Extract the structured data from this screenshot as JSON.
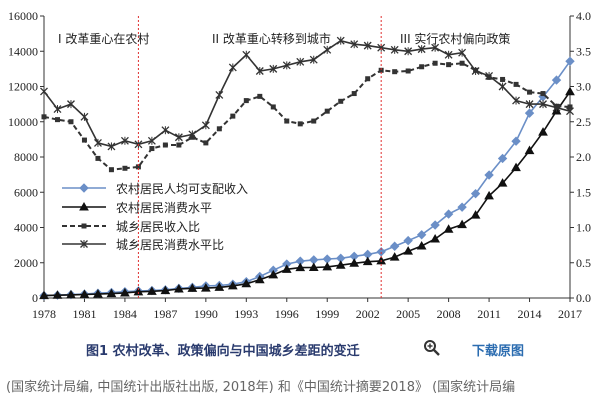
{
  "chart_data": {
    "type": "line",
    "title": "",
    "xlabel": "",
    "ylabel": "",
    "x_ticks": [
      1978,
      1981,
      1984,
      1987,
      1990,
      1993,
      1996,
      1999,
      2002,
      2005,
      2008,
      2011,
      2014,
      2017
    ],
    "x_range": [
      1978,
      2017
    ],
    "y_left": {
      "range": [
        0,
        16000
      ],
      "ticks": [
        0,
        2000,
        4000,
        6000,
        8000,
        10000,
        12000,
        14000,
        16000
      ]
    },
    "y_right": {
      "range": [
        0,
        4
      ],
      "ticks": [
        "0.0",
        "0.5",
        "1.0",
        "1.5",
        "2.0",
        "2.5",
        "3.0",
        "3.5",
        "4.0"
      ]
    },
    "legend_position": "left-middle",
    "grid": false,
    "annotations": [
      "I 改革重心在农村",
      "II 改革重心转移到城市",
      "III 实行农村偏向政策"
    ],
    "vlines": [
      1985,
      2003
    ],
    "series": [
      {
        "name": "农村居民人均可支配收入",
        "axis": "left",
        "color": "#6b8fc7",
        "marker": "diamond",
        "style": "solid",
        "x": [
          1978,
          1979,
          1980,
          1981,
          1982,
          1983,
          1984,
          1985,
          1986,
          1987,
          1988,
          1989,
          1990,
          1991,
          1992,
          1993,
          1994,
          1995,
          1996,
          1997,
          1998,
          1999,
          2000,
          2001,
          2002,
          2003,
          2004,
          2005,
          2006,
          2007,
          2008,
          2009,
          2010,
          2011,
          2012,
          2013,
          2014,
          2015,
          2016,
          2017
        ],
        "values": [
          134,
          160,
          191,
          223,
          270,
          310,
          355,
          398,
          424,
          463,
          545,
          602,
          686,
          709,
          784,
          922,
          1221,
          1578,
          1926,
          2090,
          2162,
          2210,
          2253,
          2366,
          2476,
          2622,
          2936,
          3255,
          3587,
          4140,
          4761,
          5153,
          5919,
          6977,
          7917,
          8896,
          10489,
          11422,
          12363,
          13432
        ]
      },
      {
        "name": "农村居民消费水平",
        "axis": "left",
        "color": "#111111",
        "marker": "triangle",
        "style": "solid",
        "x": [
          1978,
          1979,
          1980,
          1981,
          1982,
          1983,
          1984,
          1985,
          1986,
          1987,
          1988,
          1989,
          1990,
          1991,
          1992,
          1993,
          1994,
          1995,
          1996,
          1997,
          1998,
          1999,
          2000,
          2001,
          2002,
          2003,
          2004,
          2005,
          2006,
          2007,
          2008,
          2009,
          2010,
          2011,
          2012,
          2013,
          2014,
          2015,
          2016,
          2017
        ],
        "values": [
          138,
          159,
          178,
          201,
          223,
          250,
          287,
          349,
          378,
          421,
          509,
          549,
          560,
          602,
          688,
          805,
          1038,
          1313,
          1626,
          1722,
          1730,
          1766,
          1860,
          1969,
          2062,
          2103,
          2319,
          2657,
          2950,
          3347,
          3901,
          4163,
          4700,
          5796,
          6516,
          7397,
          8365,
          9409,
          10610,
          11704
        ]
      },
      {
        "name": "城乡居民收入比",
        "axis": "right",
        "color": "#333333",
        "marker": "square",
        "style": "dashed",
        "x": [
          1978,
          1979,
          1980,
          1981,
          1982,
          1983,
          1984,
          1985,
          1986,
          1987,
          1988,
          1989,
          1990,
          1991,
          1992,
          1993,
          1994,
          1995,
          1996,
          1997,
          1998,
          1999,
          2000,
          2001,
          2002,
          2003,
          2004,
          2005,
          2006,
          2007,
          2008,
          2009,
          2010,
          2011,
          2012,
          2013,
          2014,
          2015,
          2016,
          2017
        ],
        "values": [
          2.57,
          2.53,
          2.5,
          2.24,
          1.98,
          1.82,
          1.84,
          1.86,
          2.12,
          2.17,
          2.17,
          2.28,
          2.2,
          2.4,
          2.58,
          2.8,
          2.86,
          2.71,
          2.51,
          2.47,
          2.51,
          2.65,
          2.79,
          2.9,
          3.11,
          3.23,
          3.21,
          3.22,
          3.28,
          3.33,
          3.31,
          3.33,
          3.23,
          3.13,
          3.1,
          3.03,
          2.92,
          2.9,
          2.72,
          2.71
        ]
      },
      {
        "name": "城乡居民消费水平比",
        "axis": "right",
        "color": "#333333",
        "marker": "x",
        "style": "solid",
        "x": [
          1978,
          1979,
          1980,
          1981,
          1982,
          1983,
          1984,
          1985,
          1986,
          1987,
          1988,
          1989,
          1990,
          1991,
          1992,
          1993,
          1994,
          1995,
          1996,
          1997,
          1998,
          1999,
          2000,
          2001,
          2002,
          2003,
          2004,
          2005,
          2006,
          2007,
          2008,
          2009,
          2010,
          2011,
          2012,
          2013,
          2014,
          2015,
          2016,
          2017
        ],
        "values": [
          2.93,
          2.68,
          2.75,
          2.57,
          2.2,
          2.15,
          2.23,
          2.18,
          2.23,
          2.38,
          2.28,
          2.32,
          2.45,
          2.88,
          3.27,
          3.45,
          3.22,
          3.25,
          3.3,
          3.35,
          3.38,
          3.52,
          3.65,
          3.6,
          3.58,
          3.55,
          3.52,
          3.5,
          3.53,
          3.55,
          3.45,
          3.48,
          3.22,
          3.15,
          3.0,
          2.8,
          2.75,
          2.75,
          2.7,
          2.65
        ]
      }
    ]
  },
  "caption": {
    "title": "图1 农村改革、政策偏向与中国城乡差距的变迁",
    "download": "下载原图"
  },
  "source_note": "(国家统计局编, 中国统计出版社出版, 2018年) 和《中国统计摘要2018》 (国家统计局编"
}
